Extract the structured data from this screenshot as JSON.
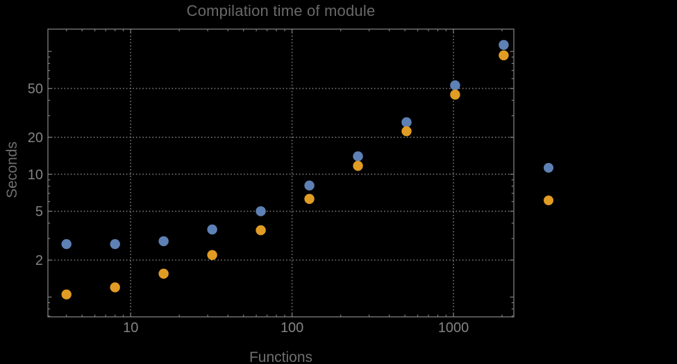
{
  "window": {
    "background": "#000000"
  },
  "chart_data": {
    "type": "scatter",
    "title": "Compilation time of module",
    "xlabel": "Functions",
    "ylabel": "Seconds",
    "x_scale": "log",
    "y_scale": "log",
    "xlim": [
      3.07,
      2366
    ],
    "ylim": [
      0.69,
      152
    ],
    "grid": {
      "style": "dotted",
      "x_at": [
        10,
        100,
        1000
      ],
      "y_at": [
        2,
        5,
        10,
        20,
        50
      ]
    },
    "x": [
      4,
      8,
      16,
      32,
      64,
      128,
      256,
      512,
      1024,
      2048
    ],
    "series": [
      {
        "name": "series-1-blue",
        "color": "#5E81B5",
        "values": [
          2.7,
          2.7,
          2.85,
          3.55,
          5.0,
          8.1,
          14.0,
          26.5,
          53,
          113
        ]
      },
      {
        "name": "series-2-orange",
        "color": "#E19C24",
        "values": [
          1.05,
          1.2,
          1.55,
          2.2,
          3.5,
          6.3,
          11.7,
          22.4,
          44.5,
          93
        ]
      }
    ],
    "x_major_ticks": [
      10,
      100,
      1000
    ],
    "x_tick_labels": [
      "10",
      "100",
      "1000"
    ],
    "x_minor_ticks": [
      4,
      5,
      6,
      7,
      8,
      9,
      20,
      30,
      40,
      50,
      60,
      70,
      80,
      90,
      200,
      300,
      400,
      500,
      600,
      700,
      800,
      900,
      2000
    ],
    "y_major_ticks": [
      2,
      5,
      10,
      20,
      50
    ],
    "y_tick_labels": [
      "2",
      "5",
      "10",
      "20",
      "50"
    ],
    "y_unlabeled_major_ticks": [
      1,
      100
    ],
    "y_minor_ticks": [
      0.7,
      0.8,
      0.9,
      3,
      4,
      6,
      7,
      8,
      9,
      30,
      40,
      60,
      70,
      80,
      90
    ],
    "legend": {
      "position": "right-outside",
      "items": [
        {
          "label": "",
          "color": "#5E81B5"
        },
        {
          "label": "",
          "color": "#E19C24"
        }
      ]
    }
  },
  "colors": {
    "background": "#000000",
    "frame": "#7f7f7f",
    "grid": "#787878",
    "tick_label": "#848484",
    "axis_label": "#6f6f6f",
    "title": "#696969",
    "series1": "#5E81B5",
    "series2": "#E19C24"
  }
}
